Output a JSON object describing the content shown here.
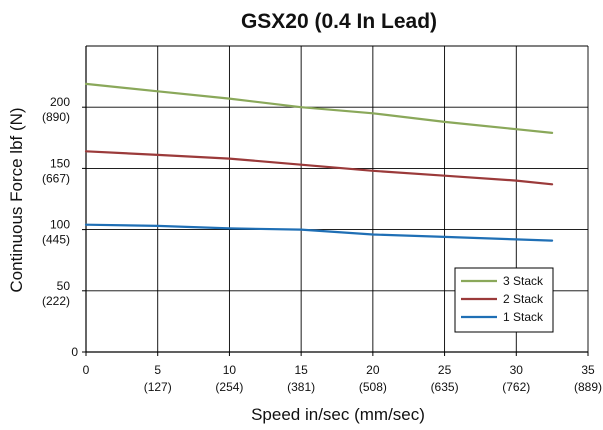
{
  "chart_data": {
    "type": "line",
    "title": "GSX20 (0.4 In Lead)",
    "xlabel": "Speed in/sec (mm/sec)",
    "ylabel": "Continuous Force lbf (N)",
    "xlim": [
      0,
      35
    ],
    "ylim": [
      0,
      250
    ],
    "x_ticks": [
      {
        "value": 0,
        "label": "0",
        "sublabel": ""
      },
      {
        "value": 5,
        "label": "5",
        "sublabel": "(127)"
      },
      {
        "value": 10,
        "label": "10",
        "sublabel": "(254)"
      },
      {
        "value": 15,
        "label": "15",
        "sublabel": "(381)"
      },
      {
        "value": 20,
        "label": "20",
        "sublabel": "(508)"
      },
      {
        "value": 25,
        "label": "25",
        "sublabel": "(635)"
      },
      {
        "value": 30,
        "label": "30",
        "sublabel": "(762)"
      },
      {
        "value": 35,
        "label": "35",
        "sublabel": "(889)"
      }
    ],
    "y_ticks": [
      {
        "value": 0,
        "label": "0",
        "sublabel": ""
      },
      {
        "value": 50,
        "label": "50",
        "sublabel": "(222)"
      },
      {
        "value": 100,
        "label": "100",
        "sublabel": "(445)"
      },
      {
        "value": 150,
        "label": "150",
        "sublabel": "(667)"
      },
      {
        "value": 200,
        "label": "200",
        "sublabel": "(890)"
      }
    ],
    "grid": true,
    "legend_position": "bottom-right",
    "series": [
      {
        "name": "3 Stack",
        "color": "#8aa85a",
        "x": [
          0,
          5,
          10,
          15,
          20,
          25,
          30,
          32.5
        ],
        "y": [
          219,
          213,
          207,
          200,
          195,
          188,
          182,
          179
        ]
      },
      {
        "name": "2 Stack",
        "color": "#9b3a3a",
        "x": [
          0,
          5,
          10,
          15,
          20,
          25,
          30,
          32.5
        ],
        "y": [
          164,
          161,
          158,
          153,
          148,
          144,
          140,
          137
        ]
      },
      {
        "name": "1 Stack",
        "color": "#1f6fb5",
        "x": [
          0,
          5,
          10,
          15,
          20,
          25,
          30,
          32.5
        ],
        "y": [
          104,
          103,
          101,
          100,
          96,
          94,
          92,
          91
        ]
      }
    ]
  }
}
